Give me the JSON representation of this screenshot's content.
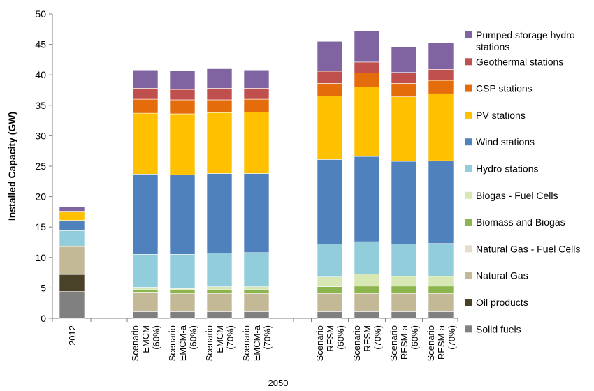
{
  "chart_data": {
    "type": "bar",
    "stacked": true,
    "ylabel": "Installed Capacity (GW)",
    "xgroup_label": "2050",
    "ylim": [
      0,
      50
    ],
    "yticks": [
      0,
      5,
      10,
      15,
      20,
      25,
      30,
      35,
      40,
      45,
      50
    ],
    "grid": false,
    "legend_position": "right",
    "categories": [
      "2012",
      "Scenario EMCM (60%)",
      "Scenario EMCM-a (60%)",
      "Scenario EMCM (70%)",
      "Scenario EMCM-a (70%)",
      "Scenario RESM (60%)",
      "Scenario RESM (70%)",
      "Scenario RESM-a (60%)",
      "Scenario RESM-a (70%)"
    ],
    "category_lines": [
      [
        "2012"
      ],
      [
        "Scenario",
        "EMCM",
        "(60%)"
      ],
      [
        "Scenario",
        "EMCM-a",
        "(60%)"
      ],
      [
        "Scenario",
        "EMCM",
        "(70%)"
      ],
      [
        "Scenario",
        "EMCM-a",
        "(70%)"
      ],
      [
        "Scenario",
        "RESM",
        "(60%)"
      ],
      [
        "Scenario",
        "RESM",
        "(70%)"
      ],
      [
        "Scenario",
        "RESM-a",
        "(60%)"
      ],
      [
        "Scenario",
        "RESM-a",
        "(70%)"
      ]
    ],
    "series": [
      {
        "name": "Solid fuels",
        "color": "#808080",
        "values": [
          4.4,
          1.1,
          1.1,
          1.1,
          1.1,
          1.1,
          1.1,
          1.1,
          1.1
        ]
      },
      {
        "name": "Oil products",
        "color": "#4a4228",
        "values": [
          2.8,
          0,
          0,
          0,
          0,
          0,
          0,
          0,
          0
        ]
      },
      {
        "name": "Natural Gas",
        "color": "#c4b996",
        "values": [
          4.6,
          3.1,
          3.0,
          3.0,
          3.0,
          3.0,
          3.0,
          3.0,
          3.0
        ]
      },
      {
        "name": "Natural Gas - Fuel Cells",
        "color": "#e6dccb",
        "values": [
          0,
          0.1,
          0.1,
          0.1,
          0.1,
          0.1,
          0.1,
          0.1,
          0.1
        ]
      },
      {
        "name": "Biomass and Biogas",
        "color": "#8db54e",
        "values": [
          0,
          0.4,
          0.5,
          0.5,
          0.5,
          1.0,
          1.1,
          1.1,
          1.1
        ]
      },
      {
        "name": "Biogas - Fuel Cells",
        "color": "#d8e8b4",
        "values": [
          0.1,
          0.4,
          0.2,
          0.5,
          0.5,
          1.6,
          2.0,
          1.6,
          1.6
        ]
      },
      {
        "name": "Hydro stations",
        "color": "#92cddc",
        "values": [
          2.5,
          5.4,
          5.6,
          5.5,
          5.6,
          5.4,
          5.3,
          5.3,
          5.4
        ]
      },
      {
        "name": "Wind stations",
        "color": "#4f81bd",
        "values": [
          1.7,
          13.2,
          13.1,
          13.1,
          13.0,
          13.9,
          14.0,
          13.6,
          13.6
        ]
      },
      {
        "name": "PV stations",
        "color": "#ffc000",
        "values": [
          1.5,
          10.0,
          10.0,
          10.0,
          10.1,
          10.4,
          11.4,
          10.6,
          11.0
        ]
      },
      {
        "name": "CSP stations",
        "color": "#e46c0a",
        "values": [
          0,
          2.3,
          2.3,
          2.1,
          2.1,
          2.1,
          2.3,
          2.2,
          2.2
        ]
      },
      {
        "name": "Geothermal stations",
        "color": "#c0504d",
        "values": [
          0,
          1.8,
          1.7,
          1.9,
          1.8,
          2.0,
          1.8,
          1.8,
          1.8
        ]
      },
      {
        "name": "Pumped storage hydro stations",
        "color": "#8064a2",
        "values": [
          0.7,
          3.0,
          3.1,
          3.2,
          3.0,
          4.9,
          5.1,
          4.2,
          4.4
        ]
      }
    ]
  }
}
